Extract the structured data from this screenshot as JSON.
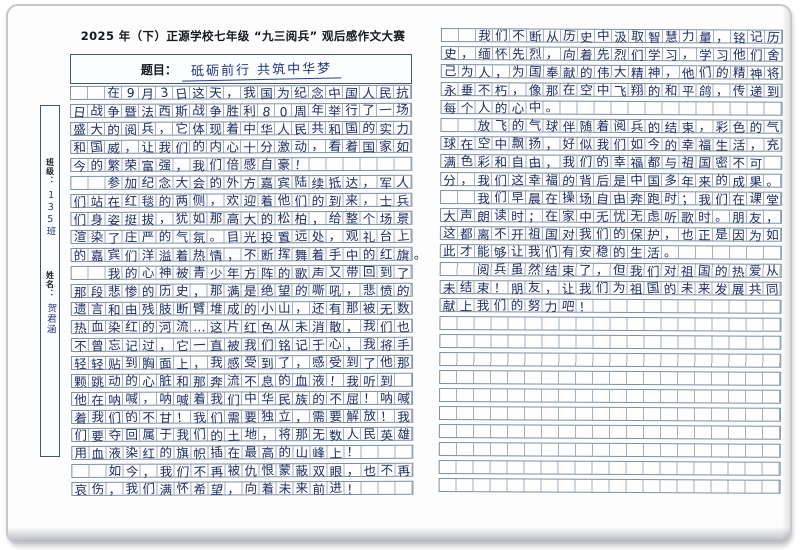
{
  "left_page": {
    "contest_title": "2025 年（下）正源学校七年级 “九三阅兵” 观后感作文大赛",
    "title_label": "题目：",
    "essay_title": "砥砺前行 共筑中华梦",
    "sidebar": {
      "class_label": "班级：",
      "class_value": "135班",
      "name_label": "姓名：",
      "name_value": "贺君涵"
    },
    "total_rows": 23,
    "rows": [
      "　　在9月3日这天，我国为纪念中国人民抗",
      "日战争暨法西斯战争胜利80周年举行了一场",
      "盛大的阅兵，它体现着中华人民共和国的实力",
      "和国威，让我们的内心十分激动，看着国家如",
      "今的繁荣富强，我们倍感自豪！",
      "　　参加纪念大会的外方嘉宾陆续抵达，军人",
      "们站在红毯的两侧，欢迎着他们的到来，士兵",
      "们身姿挺拔，犹如那高大的松柏，给整个场景",
      "渲染了庄严的气氛。目光投置远处，观礼台上",
      "的嘉宾们洋溢着热情，不断挥舞着手中的红旗。",
      "　　我的心神被青少年方阵的歌声又带回到了",
      "那段悲惨的历史，那满是绝望的嘶吼，悲愤的",
      "遗言和由残肢断臂堆成的小山，还有那被无数",
      "热血染红的河流…这片红色从未消散，我们也",
      "不曾忘记过，它一直被我们铭记于心，我将手",
      "轻轻贴到胸面上，我感受到了，感受到了他那",
      "颗跳动的心脏和那奔流不息的血液！我听到",
      "他在呐喊，呐喊着我们中华民族的不屈！呐喊",
      "着我们的不甘！我们需要独立，需要解放！我",
      "们要夺回属于我们的土地，将那无数人民英雄",
      "用血液染红的旗帜插在最高的山峰上！",
      "　　如今，我们不再被仇恨蒙蔽双眼，也不再",
      "哀伤，我们满怀希望，向着未来前进！"
    ]
  },
  "right_page": {
    "total_rows": 26,
    "rows": [
      "　　我们不断从历史中汲取智慧力量，铭记历",
      "史，缅怀先烈，向着先烈们学习，学习他们舍",
      "己为人，为国奉献的伟大精神，他们的精神将",
      "永垂不朽，像那在空中飞翔的和平鸽，传递到",
      "每个人的心中。",
      "　　放飞的气球伴随着阅兵的结束，彩色的气",
      "球在空中飘扬，好似我们如今的幸福生活，充",
      "满色彩和自由，我们的幸福都与祖国密不可",
      "分，我们这幸福的背后是中国多年来的成果。",
      "　　我们早晨在操场自由奔跑时；我们在课堂",
      "大声朗读时；在家中无忧无虑听歌时。朋友，",
      "这都离不开祖国对我们的保护，也正是因为如",
      "此才能够让我们有安稳的生活。",
      "　　阅兵虽然结束了，但我们对祖国的热爱从",
      "未结束！朋友，让我们为祖国的未来发展共同",
      "献上我们的努力吧！"
    ]
  },
  "colors": {
    "ink": "#1e2d63",
    "grid_line": "#9fb0c0",
    "box_border": "#46566a",
    "paper": "#fdfdfd"
  }
}
